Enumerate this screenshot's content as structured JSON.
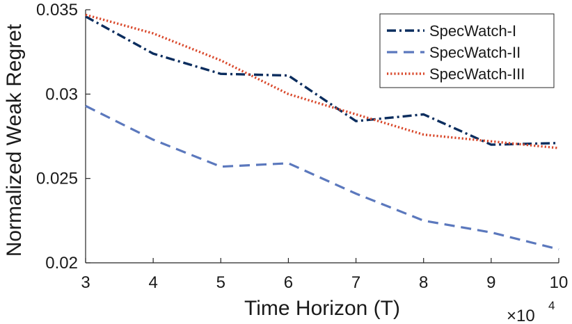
{
  "chart_data": {
    "type": "line",
    "title": "",
    "xlabel": "Time Horizon (T)",
    "ylabel": "Normalized Weak Regret",
    "x_multiplier_base": "×10",
    "x_multiplier_exponent": "4",
    "x": [
      3,
      4,
      5,
      6,
      7,
      8,
      9,
      10
    ],
    "xlim": [
      3,
      10
    ],
    "ylim": [
      0.02,
      0.035
    ],
    "xticks": [
      {
        "value": 3,
        "label": "3"
      },
      {
        "value": 4,
        "label": "4"
      },
      {
        "value": 5,
        "label": "5"
      },
      {
        "value": 6,
        "label": "6"
      },
      {
        "value": 7,
        "label": "7"
      },
      {
        "value": 8,
        "label": "8"
      },
      {
        "value": 9,
        "label": "9"
      },
      {
        "value": 10,
        "label": "10"
      }
    ],
    "yticks": [
      {
        "value": 0.02,
        "label": "0.02"
      },
      {
        "value": 0.025,
        "label": "0.025"
      },
      {
        "value": 0.03,
        "label": "0.03"
      },
      {
        "value": 0.035,
        "label": "0.035"
      }
    ],
    "grid": false,
    "legend_position": "top-right",
    "series": [
      {
        "name": "SpecWatch-I",
        "color": "#0b2d5e",
        "style": "dashdot",
        "values": [
          0.0346,
          0.0324,
          0.0312,
          0.0311,
          0.0284,
          0.0288,
          0.027,
          0.0271
        ]
      },
      {
        "name": "SpecWatch-II",
        "color": "#5b78bd",
        "style": "dashed",
        "values": [
          0.0293,
          0.0273,
          0.0257,
          0.0259,
          0.0241,
          0.0225,
          0.0218,
          0.0208
        ]
      },
      {
        "name": "SpecWatch-III",
        "color": "#d9482b",
        "style": "dotted",
        "values": [
          0.0347,
          0.0336,
          0.032,
          0.03,
          0.0288,
          0.0276,
          0.0272,
          0.0268
        ]
      }
    ]
  }
}
